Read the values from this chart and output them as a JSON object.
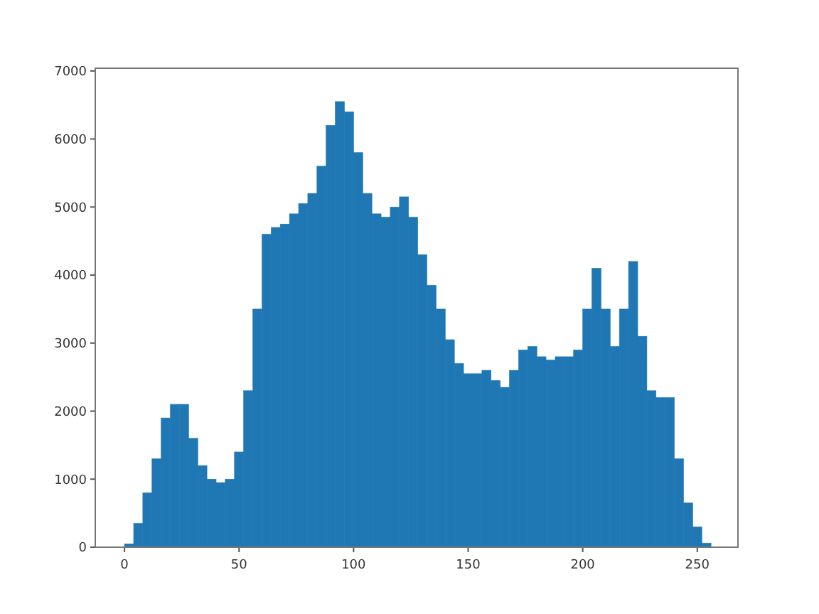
{
  "chart_data": {
    "type": "histogram",
    "bins": [
      0,
      4,
      8,
      12,
      16,
      20,
      24,
      28,
      32,
      36,
      40,
      44,
      48,
      52,
      56,
      60,
      64,
      68,
      72,
      76,
      80,
      84,
      88,
      92,
      96,
      100,
      104,
      108,
      112,
      116,
      120,
      124,
      128,
      132,
      136,
      140,
      144,
      148,
      152,
      156,
      160,
      164,
      168,
      172,
      176,
      180,
      184,
      188,
      192,
      196,
      200,
      204,
      208,
      212,
      216,
      220,
      224,
      228,
      232,
      236,
      240,
      244,
      248,
      252,
      256
    ],
    "values": [
      50,
      350,
      800,
      1300,
      1900,
      2100,
      2100,
      1600,
      1200,
      1000,
      950,
      1000,
      1400,
      2300,
      3500,
      4600,
      4700,
      4750,
      4900,
      5050,
      5200,
      5600,
      6200,
      6550,
      6400,
      5800,
      5200,
      4900,
      4850,
      5000,
      5150,
      4850,
      4300,
      3850,
      3500,
      3050,
      2700,
      2550,
      2550,
      2600,
      2450,
      2350,
      2600,
      2900,
      2950,
      2800,
      2750,
      2800,
      2800,
      2900,
      3500,
      4100,
      3500,
      2950,
      3500,
      4200,
      3100,
      2300,
      2200,
      2200,
      1300,
      650,
      300,
      60
    ],
    "color": "#1f77b4",
    "xlim": [
      -12.75,
      267.75
    ],
    "xticks": [
      0,
      50,
      100,
      150,
      200,
      250
    ],
    "ylim": [
      0,
      7040
    ],
    "yticks": [
      0,
      1000,
      2000,
      3000,
      4000,
      5000,
      6000,
      7000
    ]
  }
}
